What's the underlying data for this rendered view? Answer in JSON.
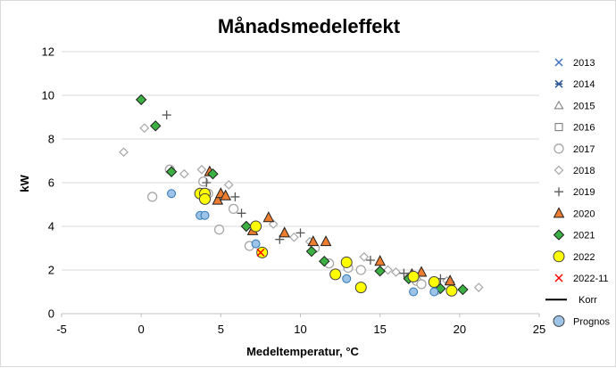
{
  "chart_data": {
    "type": "scatter",
    "title": "Månadsmedeleffekt",
    "xlabel": "Medeltemperatur, °C",
    "ylabel": "kW",
    "xlim": [
      -5,
      25
    ],
    "ylim": [
      0,
      12
    ],
    "xticks": [
      -5,
      0,
      5,
      10,
      15,
      20,
      25
    ],
    "yticks": [
      0,
      2,
      4,
      6,
      8,
      10,
      12
    ],
    "grid": "horizontal",
    "legend_position": "right",
    "series": [
      {
        "name": "2013",
        "marker": "x",
        "color": "#4472c4",
        "points": []
      },
      {
        "name": "2014",
        "marker": "star",
        "color": "#2f5597",
        "points": []
      },
      {
        "name": "2015",
        "marker": "triangle-open",
        "color": "#7f7f7f",
        "points": []
      },
      {
        "name": "2016",
        "marker": "square-open",
        "color": "#7f7f7f",
        "points": []
      },
      {
        "name": "2017",
        "marker": "circle-open",
        "color": "#a6a6a6",
        "points": [
          [
            0.7,
            5.35
          ],
          [
            1.8,
            6.6
          ],
          [
            3.9,
            6.05
          ],
          [
            4.2,
            5.5
          ],
          [
            5.8,
            4.8
          ],
          [
            4.9,
            3.85
          ],
          [
            6.8,
            3.1
          ],
          [
            10.9,
            3.0
          ],
          [
            11.8,
            2.3
          ],
          [
            13.0,
            2.1
          ],
          [
            13.8,
            2.0
          ],
          [
            17.3,
            1.5
          ],
          [
            17.6,
            1.35
          ],
          [
            18.6,
            1.1
          ]
        ]
      },
      {
        "name": "2018",
        "marker": "diamond-open",
        "color": "#a6a6a6",
        "points": [
          [
            -1.1,
            7.4
          ],
          [
            0.2,
            8.5
          ],
          [
            2.7,
            6.4
          ],
          [
            3.8,
            6.6
          ],
          [
            5.5,
            5.9
          ],
          [
            8.3,
            4.1
          ],
          [
            9.6,
            3.5
          ],
          [
            10.6,
            3.3
          ],
          [
            14.0,
            2.6
          ],
          [
            15.5,
            2.0
          ],
          [
            16.0,
            1.9
          ],
          [
            16.8,
            1.7
          ],
          [
            19.2,
            1.5
          ],
          [
            21.2,
            1.2
          ]
        ]
      },
      {
        "name": "2019",
        "marker": "plus",
        "color": "#595959",
        "points": [
          [
            1.6,
            9.1
          ],
          [
            4.1,
            6.0
          ],
          [
            5.9,
            5.35
          ],
          [
            6.3,
            4.6
          ],
          [
            8.7,
            3.4
          ],
          [
            10.0,
            3.7
          ],
          [
            14.4,
            2.45
          ],
          [
            16.5,
            1.85
          ],
          [
            18.8,
            1.6
          ],
          [
            19.4,
            1.45
          ]
        ]
      },
      {
        "name": "2020",
        "marker": "triangle",
        "color": "#ed7d31",
        "points": [
          [
            4.3,
            6.5
          ],
          [
            4.8,
            5.2
          ],
          [
            5.0,
            5.5
          ],
          [
            5.3,
            5.4
          ],
          [
            7.0,
            3.8
          ],
          [
            8.0,
            4.4
          ],
          [
            9.0,
            3.7
          ],
          [
            10.8,
            3.3
          ],
          [
            11.6,
            3.3
          ],
          [
            15.0,
            2.4
          ],
          [
            17.0,
            1.8
          ],
          [
            17.6,
            1.9
          ],
          [
            19.4,
            1.5
          ]
        ]
      },
      {
        "name": "2021",
        "marker": "diamond",
        "color": "#3cb043",
        "points": [
          [
            0.0,
            9.8
          ],
          [
            0.9,
            8.6
          ],
          [
            1.9,
            6.5
          ],
          [
            4.5,
            6.4
          ],
          [
            6.6,
            4.0
          ],
          [
            10.7,
            2.85
          ],
          [
            11.5,
            2.4
          ],
          [
            15.0,
            1.95
          ],
          [
            16.8,
            1.6
          ],
          [
            18.8,
            1.15
          ],
          [
            20.2,
            1.1
          ]
        ]
      },
      {
        "name": "2022",
        "marker": "circle",
        "color": "#ffff00",
        "points": [
          [
            3.7,
            5.5
          ],
          [
            4.0,
            5.5
          ],
          [
            4.0,
            5.25
          ],
          [
            7.2,
            4.0
          ],
          [
            7.6,
            2.8
          ],
          [
            12.2,
            1.8
          ],
          [
            12.9,
            2.35
          ],
          [
            13.8,
            1.2
          ],
          [
            17.1,
            1.7
          ],
          [
            18.4,
            1.45
          ],
          [
            19.5,
            1.05
          ]
        ]
      },
      {
        "name": "2022-11",
        "marker": "x",
        "color": "#ff0000",
        "points": [
          [
            7.5,
            2.8
          ]
        ]
      },
      {
        "name": "Korr",
        "marker": "line",
        "color": "#000000",
        "points": []
      },
      {
        "name": "Prognos",
        "marker": "circle",
        "color": "#9dc3e6",
        "points": [
          [
            1.9,
            5.5
          ],
          [
            3.7,
            4.5
          ],
          [
            4.0,
            4.5
          ],
          [
            7.2,
            3.2
          ],
          [
            12.9,
            1.6
          ],
          [
            17.1,
            1.0
          ],
          [
            18.4,
            1.0
          ]
        ]
      }
    ]
  }
}
